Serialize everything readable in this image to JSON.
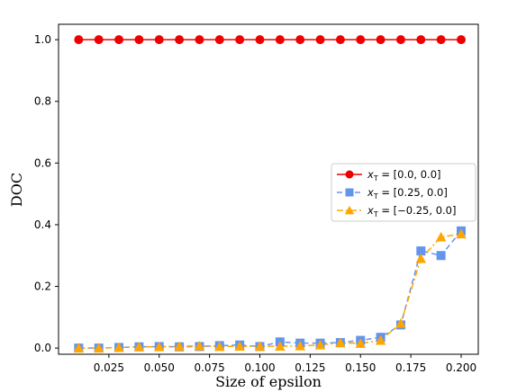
{
  "chart_data": {
    "type": "line",
    "xlabel": "Size of epsilon",
    "ylabel": "DOC",
    "xlim": [
      0.0,
      0.2085
    ],
    "ylim": [
      -0.02,
      1.05
    ],
    "xticks": [
      0.025,
      0.05,
      0.075,
      0.1,
      0.125,
      0.15,
      0.175,
      0.2
    ],
    "xtick_labels": [
      "0.025",
      "0.050",
      "0.075",
      "0.100",
      "0.125",
      "0.150",
      "0.175",
      "0.200"
    ],
    "yticks": [
      0.0,
      0.2,
      0.4,
      0.6,
      0.8,
      1.0
    ],
    "ytick_labels": [
      "0.0",
      "0.2",
      "0.4",
      "0.6",
      "0.8",
      "1.0"
    ],
    "grid": false,
    "legend_position": "center-right",
    "x": [
      0.01,
      0.02,
      0.03,
      0.04,
      0.05,
      0.06,
      0.07,
      0.08,
      0.09,
      0.1,
      0.11,
      0.12,
      0.13,
      0.14,
      0.15,
      0.16,
      0.17,
      0.18,
      0.19,
      0.2
    ],
    "series": [
      {
        "name": "x_T = [0.0, 0.0]",
        "legend_sub": "T",
        "legend_value": " = [0.0, 0.0]",
        "color": "#ee0000",
        "linestyle": "solid",
        "marker": "circle",
        "values": [
          1,
          1,
          1,
          1,
          1,
          1,
          1,
          1,
          1,
          1,
          1,
          1,
          1,
          1,
          1,
          1,
          1,
          1,
          1,
          1
        ]
      },
      {
        "name": "x_T = [0.25, 0.0]",
        "legend_sub": "T",
        "legend_value": " = [0.25, 0.0]",
        "color": "#6495ed",
        "linestyle": "dashed",
        "marker": "square",
        "values": [
          0.0,
          0.0,
          0.002,
          0.004,
          0.005,
          0.004,
          0.005,
          0.008,
          0.01,
          0.005,
          0.02,
          0.016,
          0.016,
          0.018,
          0.025,
          0.035,
          0.075,
          0.315,
          0.3,
          0.38
        ]
      },
      {
        "name": "x_T = [-0.25, 0.0]",
        "legend_sub": "T",
        "legend_value": " = [−0.25, 0.0]",
        "color": "#ffa500",
        "linestyle": "dashdot",
        "marker": "triangle",
        "values": [
          0.0,
          0.0,
          0.002,
          0.004,
          0.004,
          0.006,
          0.007,
          0.005,
          0.006,
          0.006,
          0.006,
          0.007,
          0.01,
          0.017,
          0.015,
          0.025,
          0.08,
          0.29,
          0.36,
          0.37
        ]
      }
    ]
  }
}
